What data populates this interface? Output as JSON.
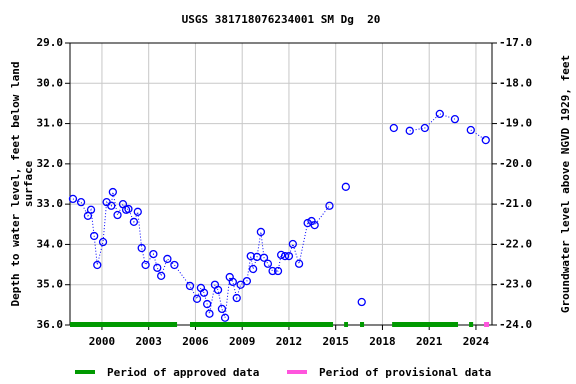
{
  "chart_data": {
    "type": "scatter",
    "title": "USGS 381718076234001 SM Dg  20",
    "y_label": "Depth to water level, feet below land\nsurface",
    "y2_label": "Groundwater level above NGVD 1929, feet",
    "xlim": [
      1997.95,
      2025.03
    ],
    "xticks": [
      2000,
      2003,
      2006,
      2009,
      2012,
      2015,
      2018,
      2021,
      2024
    ],
    "ylim": [
      36,
      29
    ],
    "yticks": [
      {
        "value": 29,
        "label": "29.0"
      },
      {
        "value": 30,
        "label": "30.0"
      },
      {
        "value": 31,
        "label": "31.0"
      },
      {
        "value": 32,
        "label": "32.0"
      },
      {
        "value": 33,
        "label": "33.0"
      },
      {
        "value": 34,
        "label": "34.0"
      },
      {
        "value": 35,
        "label": "35.0"
      },
      {
        "value": 36,
        "label": "36.0"
      }
    ],
    "y2lim": [
      -24,
      -17
    ],
    "y2ticks": [
      {
        "value": -17,
        "label": "-17.0"
      },
      {
        "value": -18,
        "label": "-18.0"
      },
      {
        "value": -19,
        "label": "-19.0"
      },
      {
        "value": -20,
        "label": "-20.0"
      },
      {
        "value": -21,
        "label": "-21.0"
      },
      {
        "value": -22,
        "label": "-22.0"
      },
      {
        "value": -23,
        "label": "-23.0"
      },
      {
        "value": -24,
        "label": "-24.0"
      }
    ],
    "grid": true,
    "series": [
      {
        "color": "#0000ff",
        "x": [
          1998.14,
          1998.66,
          1999.1,
          1999.3,
          1999.5,
          1999.7,
          2000.07,
          2000.3,
          2000.6,
          2000.7,
          2001.0,
          2001.35,
          2001.55,
          2001.7,
          2002.05,
          2002.3,
          2002.55,
          2002.8,
          2003.3,
          2003.55,
          2003.8,
          2004.2,
          2004.65,
          2005.65,
          2006.1,
          2006.35,
          2006.55,
          2006.75,
          2006.9,
          2007.25,
          2007.45,
          2007.7,
          2007.9,
          2008.2,
          2008.4,
          2008.65,
          2008.9,
          2009.3,
          2009.55,
          2009.7,
          2009.95,
          2010.2,
          2010.4,
          2010.65,
          2010.95,
          2011.3,
          2011.5,
          2011.75,
          2012.0,
          2012.25,
          2012.65,
          2013.2,
          2013.45,
          2013.65,
          2014.6,
          2015.65,
          2016.67,
          2018.73,
          2019.75,
          2020.72,
          2021.68,
          2022.65,
          2023.67,
          2024.63
        ],
        "values": [
          32.87,
          32.95,
          33.29,
          33.14,
          33.79,
          34.51,
          33.94,
          32.95,
          33.04,
          32.7,
          33.27,
          33.0,
          33.14,
          33.12,
          33.44,
          33.19,
          34.09,
          34.51,
          34.24,
          34.58,
          34.78,
          34.36,
          34.51,
          35.03,
          35.35,
          35.08,
          35.2,
          35.48,
          35.72,
          35.0,
          35.13,
          35.6,
          35.82,
          34.81,
          34.93,
          35.33,
          35.0,
          34.91,
          34.29,
          34.61,
          34.31,
          33.69,
          34.33,
          34.48,
          34.66,
          34.66,
          34.26,
          34.29,
          34.29,
          33.99,
          34.48,
          33.47,
          33.42,
          33.52,
          33.04,
          32.57,
          35.43,
          31.11,
          31.18,
          31.11,
          30.76,
          30.89,
          31.16,
          31.41
        ]
      }
    ],
    "periods": [
      {
        "name": "Period of approved data",
        "color": "#009900",
        "ranges": [
          [
            1997.95,
            2004.82
          ],
          [
            2005.65,
            2014.83
          ],
          [
            2015.54,
            2015.79
          ],
          [
            2016.56,
            2016.82
          ],
          [
            2018.62,
            2022.85
          ],
          [
            2023.56,
            2023.82
          ]
        ]
      },
      {
        "name": "Period of provisional data",
        "color": "#ff55dd",
        "ranges": [
          [
            2024.52,
            2024.84
          ]
        ]
      }
    ]
  }
}
